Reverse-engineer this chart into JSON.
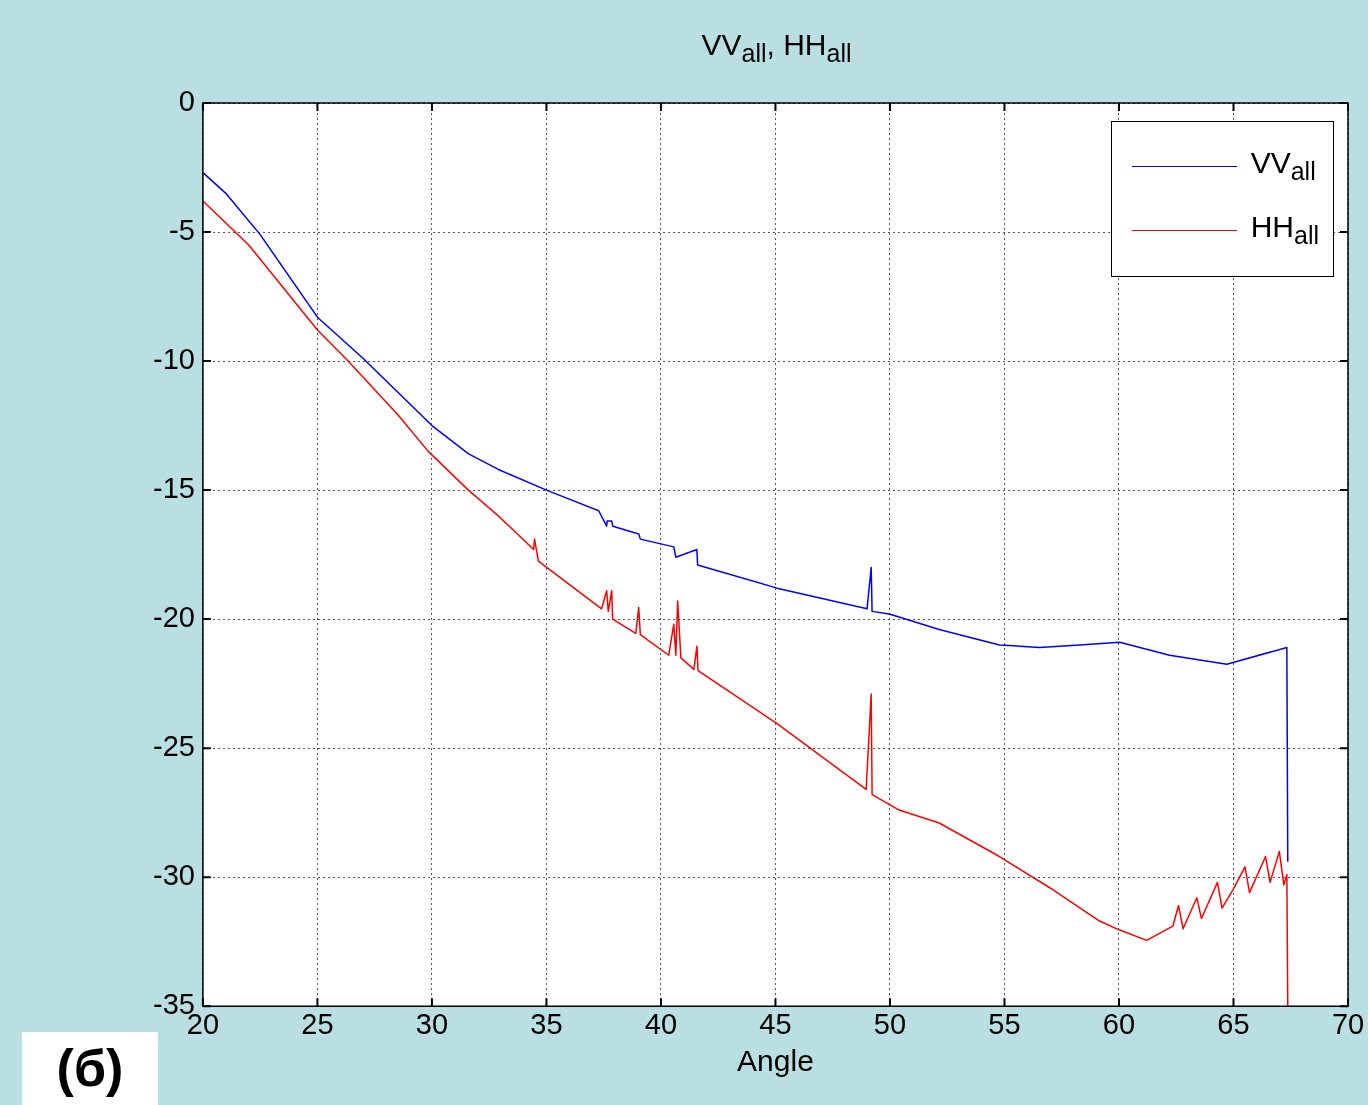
{
  "chart_data": {
    "type": "line",
    "title": "VV$_{all}$, HH$_{all}$",
    "xlabel": "Angle",
    "xlim": [
      20,
      70
    ],
    "xticks": [
      20,
      25,
      30,
      35,
      40,
      45,
      50,
      55,
      60,
      65,
      70
    ],
    "ylim": [
      -35,
      0
    ],
    "yticks": [
      -35,
      -30,
      -25,
      -20,
      -15,
      -10,
      -5,
      0
    ],
    "grid": true,
    "legend": "top right",
    "marker": "none",
    "line_style": "solid",
    "annotations": [
      "(б)"
    ],
    "series": [
      {
        "name": "VV$_{all}$",
        "color": "#0000ff",
        "x": [
          20,
          21,
          22.5,
          25,
          27,
          28.5,
          30,
          31.6,
          32.9,
          35,
          37.28,
          37.63,
          37.65,
          37.85,
          37.9,
          39.03,
          39.1,
          40.56,
          40.65,
          41.57,
          41.6,
          45.07,
          49.0,
          49.18,
          49.22,
          49.97,
          52.15,
          54.78,
          56.53,
          58.28,
          60.03,
          62.21,
          64.71,
          67.33,
          67.37
        ],
        "values": [
          -2.7,
          -3.5,
          -5.1,
          -8.3,
          -9.9,
          -11.2,
          -12.5,
          -13.6,
          -14.2,
          -15.0,
          -15.8,
          -16.4,
          -16.2,
          -16.2,
          -16.4,
          -16.7,
          -16.9,
          -17.2,
          -17.6,
          -17.3,
          -17.9,
          -18.8,
          -19.6,
          -18.0,
          -19.7,
          -19.8,
          -20.4,
          -21.0,
          -21.1,
          -21.0,
          -20.9,
          -21.4,
          -21.75,
          -21.1,
          -29.4
        ]
      },
      {
        "name": "HH$_{all}$",
        "color": "#ff0000",
        "x": [
          20,
          22,
          25,
          26.34,
          28.53,
          29.84,
          31.59,
          32.9,
          34.44,
          34.48,
          34.65,
          37.41,
          37.63,
          37.7,
          37.85,
          37.89,
          38.9,
          39.03,
          39.1,
          40.34,
          40.56,
          40.65,
          40.73,
          40.87,
          41.44,
          41.57,
          41.62,
          45.07,
          48.96,
          49.18,
          49.22,
          50.4,
          52.15,
          54.78,
          56.96,
          59.15,
          60.03,
          61.21,
          62.35,
          62.6,
          62.8,
          63.4,
          63.6,
          64.3,
          64.5,
          64.97,
          65.5,
          65.7,
          66.4,
          66.6,
          67.0,
          67.2,
          67.33,
          67.37
        ],
        "values": [
          -3.8,
          -5.5,
          -8.8,
          -10.0,
          -12.1,
          -13.5,
          -15.0,
          -16.0,
          -17.3,
          -16.9,
          -17.75,
          -19.6,
          -18.9,
          -19.7,
          -18.9,
          -20.0,
          -20.55,
          -19.55,
          -20.6,
          -21.4,
          -20.2,
          -21.4,
          -19.3,
          -21.5,
          -21.95,
          -21.05,
          -22.0,
          -24.05,
          -26.6,
          -22.9,
          -26.8,
          -27.4,
          -27.9,
          -29.2,
          -30.4,
          -31.7,
          -32.05,
          -32.45,
          -31.9,
          -31.1,
          -32.0,
          -30.8,
          -31.6,
          -30.2,
          -31.2,
          -30.5,
          -29.6,
          -30.6,
          -29.2,
          -30.2,
          -29.0,
          -30.3,
          -29.9,
          -35.0
        ]
      }
    ]
  }
}
